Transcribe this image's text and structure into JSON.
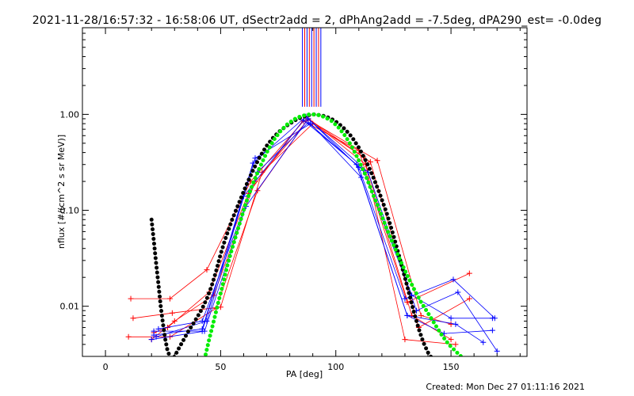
{
  "header": {
    "title": "2021-11-28/16:57:32 - 16:58:06 UT, dSectr2add = 2, dPhAng2add = -7.5deg, dPA290_est= -0.0deg"
  },
  "footer": {
    "created": "Created: Mon Dec 27 01:11:16 2021"
  },
  "chart_data": {
    "type": "line",
    "xlabel": "PA [deg]",
    "ylabel": "nflux [#/(cm^2 s sr MeV)]",
    "xlim": [
      -10,
      183
    ],
    "ylim": [
      0.003,
      8
    ],
    "yscale": "log",
    "xticks": [
      0,
      50,
      100,
      150
    ],
    "xtick_labels": [
      "0",
      "50",
      "100",
      "150"
    ],
    "yticks": [
      0.01,
      0.1,
      1.0
    ],
    "ytick_labels": [
      "0.01",
      "0.10",
      "1.00"
    ],
    "grid": false,
    "colors": {
      "red": "#ff0000",
      "blue": "#0000ff",
      "black": "#000000",
      "green": "#00ee00"
    },
    "vertical_markers": {
      "y_range": [
        1.2,
        8
      ],
      "lines": [
        {
          "x": 85.5,
          "color": "#0000ff"
        },
        {
          "x": 86.5,
          "color": "#ff0000"
        },
        {
          "x": 87.5,
          "color": "#0000ff"
        },
        {
          "x": 88.5,
          "color": "#ff0000"
        },
        {
          "x": 89.5,
          "color": "#0000ff"
        },
        {
          "x": 90.5,
          "color": "#ff0000"
        },
        {
          "x": 91.5,
          "color": "#0000ff"
        },
        {
          "x": 92.5,
          "color": "#ff0000"
        },
        {
          "x": 93.5,
          "color": "#0000ff"
        }
      ]
    },
    "series": [
      {
        "color": "#ff0000",
        "x": [
          11,
          28,
          44,
          63,
          86,
          110,
          131,
          158
        ],
        "y": [
          0.012,
          0.012,
          0.024,
          0.2,
          0.85,
          0.42,
          0.011,
          0.022
        ]
      },
      {
        "color": "#ff0000",
        "x": [
          10,
          28,
          48,
          66,
          88,
          112,
          133,
          150
        ],
        "y": [
          0.0048,
          0.0048,
          0.0095,
          0.16,
          0.9,
          0.36,
          0.008,
          0.0045
        ]
      },
      {
        "color": "#ff0000",
        "x": [
          12,
          29,
          50,
          68,
          90,
          115,
          136,
          158
        ],
        "y": [
          0.0075,
          0.0085,
          0.0098,
          0.25,
          0.8,
          0.32,
          0.006,
          0.012
        ]
      },
      {
        "color": "#ff0000",
        "x": [
          21,
          27,
          45,
          62,
          87,
          113,
          130,
          152
        ],
        "y": [
          0.0053,
          0.006,
          0.014,
          0.15,
          0.95,
          0.3,
          0.0045,
          0.004
        ]
      },
      {
        "color": "#ff0000",
        "x": [
          20,
          30,
          47,
          65,
          88,
          118,
          137,
          150
        ],
        "y": [
          0.0045,
          0.007,
          0.013,
          0.2,
          0.88,
          0.33,
          0.008,
          0.0065
        ]
      },
      {
        "color": "#0000ff",
        "x": [
          21,
          42,
          64,
          87,
          110,
          130,
          151,
          169
        ],
        "y": [
          0.0055,
          0.0055,
          0.31,
          0.95,
          0.28,
          0.012,
          0.019,
          0.0075
        ]
      },
      {
        "color": "#0000ff",
        "x": [
          20,
          43,
          61,
          88,
          114,
          135,
          153,
          170
        ],
        "y": [
          0.0045,
          0.0055,
          0.11,
          0.9,
          0.25,
          0.009,
          0.014,
          0.0034
        ]
      },
      {
        "color": "#0000ff",
        "x": [
          21,
          42,
          60,
          86,
          109,
          131,
          147,
          168
        ],
        "y": [
          0.005,
          0.0058,
          0.14,
          0.87,
          0.3,
          0.008,
          0.0052,
          0.0056
        ]
      },
      {
        "color": "#0000ff",
        "x": [
          23,
          42,
          66,
          88,
          112,
          133,
          150,
          168
        ],
        "y": [
          0.0058,
          0.007,
          0.25,
          0.82,
          0.26,
          0.013,
          0.0075,
          0.0075
        ]
      },
      {
        "color": "#0000ff",
        "x": [
          22,
          44,
          65,
          89,
          111,
          131,
          152,
          164
        ],
        "y": [
          0.0048,
          0.007,
          0.35,
          0.8,
          0.22,
          0.008,
          0.0065,
          0.0042
        ]
      }
    ],
    "black_fit": {
      "style": "dotted",
      "color": "#000000",
      "x": [
        20,
        21,
        22,
        23,
        24,
        25,
        26,
        27,
        28,
        29,
        30,
        32,
        34,
        36,
        38,
        40,
        42,
        44,
        46,
        48,
        50,
        52,
        55,
        58,
        61,
        64,
        67,
        70,
        73,
        76,
        79,
        82,
        85,
        88,
        90,
        92,
        95,
        98,
        101,
        104,
        107,
        110,
        113,
        116,
        119,
        122,
        125,
        128,
        130,
        132,
        134,
        136,
        138,
        140,
        142
      ],
      "y": [
        0.08,
        0.048,
        0.028,
        0.017,
        0.01,
        0.0065,
        0.0045,
        0.0034,
        0.003,
        0.0028,
        0.003,
        0.0037,
        0.0045,
        0.0055,
        0.0065,
        0.0078,
        0.0095,
        0.012,
        0.016,
        0.023,
        0.035,
        0.05,
        0.08,
        0.12,
        0.18,
        0.26,
        0.36,
        0.47,
        0.58,
        0.68,
        0.77,
        0.86,
        0.93,
        0.98,
        1.0,
        0.99,
        0.96,
        0.9,
        0.81,
        0.7,
        0.58,
        0.45,
        0.33,
        0.23,
        0.15,
        0.095,
        0.055,
        0.03,
        0.02,
        0.013,
        0.0085,
        0.0058,
        0.0042,
        0.0033,
        0.0028
      ]
    },
    "green_fit": {
      "style": "dotted",
      "color": "#00ee00",
      "x": [
        43,
        45,
        47,
        49,
        51,
        53,
        55,
        58,
        61,
        64,
        67,
        70,
        73,
        76,
        79,
        82,
        85,
        88,
        90,
        92,
        95,
        98,
        101,
        104,
        107,
        110,
        113,
        116,
        119,
        122,
        125,
        128,
        131,
        134,
        137,
        140,
        143,
        146,
        149,
        152,
        155
      ],
      "y": [
        0.0028,
        0.0045,
        0.007,
        0.011,
        0.017,
        0.027,
        0.04,
        0.07,
        0.12,
        0.19,
        0.28,
        0.4,
        0.54,
        0.67,
        0.79,
        0.89,
        0.96,
        0.995,
        1.0,
        0.99,
        0.94,
        0.86,
        0.74,
        0.6,
        0.46,
        0.33,
        0.23,
        0.15,
        0.1,
        0.065,
        0.044,
        0.03,
        0.021,
        0.015,
        0.011,
        0.0085,
        0.0065,
        0.005,
        0.004,
        0.0034,
        0.0029
      ]
    }
  }
}
